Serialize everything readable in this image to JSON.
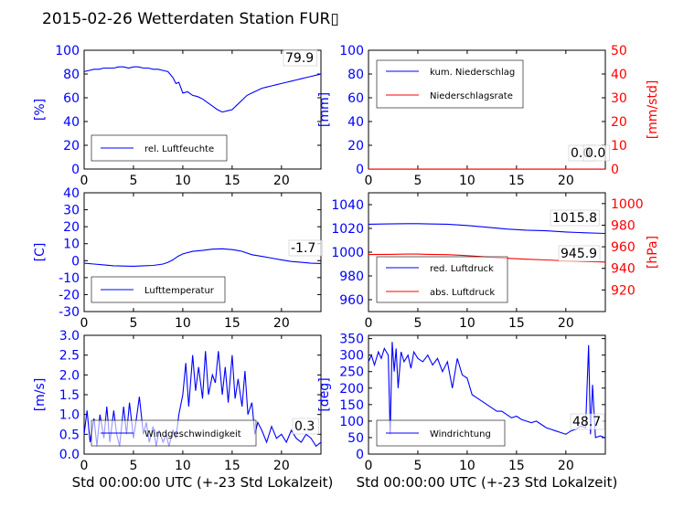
{
  "figure": {
    "title": "2015-02-26 Wetterdaten Station FUR▯",
    "title_color": "#000000"
  },
  "colors": {
    "blue": "#0000ff",
    "red": "#ff0000",
    "dark_red": "#880000",
    "axis": "#000000",
    "background": "#ffffff"
  },
  "chart_data": [
    {
      "type": "line",
      "panel": "top-left",
      "title": "",
      "xlabel": "",
      "ylabel": "[%]",
      "ylabel_color": "#0000ff",
      "xlim": [
        0,
        24
      ],
      "ylim": [
        0,
        100
      ],
      "xticks": [
        0,
        5,
        10,
        15,
        20
      ],
      "yticks": [
        0,
        20,
        40,
        60,
        80,
        100
      ],
      "ytick_color": "#0000ff",
      "grid": false,
      "legend": {
        "position": "lower-left",
        "entries": [
          "rel. Luftfeuchte"
        ]
      },
      "annotation": "79.9",
      "series": [
        {
          "name": "rel. Luftfeuchte",
          "color": "#0000ff",
          "x": [
            0,
            0.5,
            1,
            1.5,
            2,
            2.5,
            3,
            3.5,
            4,
            4.5,
            5,
            5.5,
            6,
            6.5,
            7,
            7.5,
            8,
            8.5,
            9,
            9.3,
            9.6,
            10,
            10.5,
            11,
            11.5,
            12,
            12.5,
            13,
            13.5,
            14,
            14.5,
            15,
            15.5,
            16,
            16.5,
            17,
            17.5,
            18,
            18.5,
            19,
            19.5,
            20,
            20.5,
            21,
            21.5,
            22,
            22.5,
            23,
            23.5,
            24
          ],
          "y": [
            82,
            83,
            84,
            84,
            85,
            85,
            85,
            86,
            86,
            85,
            86,
            86,
            85,
            85,
            84,
            84,
            83,
            82,
            77,
            72,
            73,
            64,
            65,
            62,
            61,
            59,
            56,
            53,
            50,
            48,
            49,
            50,
            54,
            58,
            62,
            64,
            66,
            68,
            69,
            70,
            71,
            72,
            73,
            74,
            75,
            76,
            77,
            78,
            79,
            80
          ]
        }
      ]
    },
    {
      "type": "line",
      "panel": "top-right",
      "title": "",
      "xlabel": "",
      "ylabel": "[mm]",
      "ylabel_color": "#0000ff",
      "ylabel_right": "[mm/std]",
      "ylabel_right_color": "#ff0000",
      "xlim": [
        0,
        24
      ],
      "ylim": [
        0,
        100
      ],
      "ylim_right": [
        0,
        50
      ],
      "xticks": [
        0,
        5,
        10,
        15,
        20
      ],
      "yticks": [
        0,
        20,
        40,
        60,
        80,
        100
      ],
      "yticks_right": [
        0,
        10,
        20,
        30,
        40,
        50
      ],
      "ytick_color": "#0000ff",
      "ytick_right_color": "#ff0000",
      "grid": false,
      "legend": {
        "position": "top-left",
        "entries": [
          "kum. Niederschlag",
          "Niederschlagsrate"
        ]
      },
      "annotations": [
        "0.0",
        "0.0"
      ],
      "series": [
        {
          "name": "kum. Niederschlag",
          "color": "#0000ff",
          "x": [
            0,
            24
          ],
          "y": [
            0,
            0
          ]
        },
        {
          "name": "Niederschlagsrate",
          "color": "#ff0000",
          "x": [
            0,
            24
          ],
          "y": [
            0,
            0
          ],
          "axis": "right"
        }
      ]
    },
    {
      "type": "line",
      "panel": "mid-left",
      "title": "",
      "xlabel": "",
      "ylabel": "[C]",
      "ylabel_color": "#0000ff",
      "xlim": [
        0,
        24
      ],
      "ylim": [
        -30,
        40
      ],
      "xticks": [
        0,
        5,
        10,
        15,
        20
      ],
      "yticks": [
        -30,
        -20,
        -10,
        0,
        10,
        20,
        30,
        40
      ],
      "ytick_color": "#0000ff",
      "grid": false,
      "legend": {
        "position": "lower-left",
        "entries": [
          "Lufttemperatur"
        ]
      },
      "annotation": "-1.7",
      "series": [
        {
          "name": "Lufttemperatur",
          "color": "#0000ff",
          "x": [
            0,
            1,
            2,
            3,
            4,
            5,
            6,
            7,
            8,
            8.5,
            9,
            9.5,
            10,
            11,
            12,
            13,
            14,
            15,
            15.5,
            16,
            17,
            18,
            19,
            20,
            21,
            22,
            23,
            24
          ],
          "y": [
            -1.5,
            -2,
            -2.5,
            -3,
            -3.2,
            -3.3,
            -3,
            -2.8,
            -2,
            -1,
            0.5,
            2.5,
            4,
            5.5,
            6,
            6.8,
            7,
            6.5,
            6,
            5.5,
            3.5,
            2.5,
            1.5,
            0.5,
            -0.5,
            -1,
            -1.5,
            -1.7
          ]
        }
      ]
    },
    {
      "type": "line",
      "panel": "mid-right",
      "title": "",
      "xlabel": "",
      "ylabel": "",
      "ylabel_right": "[hPa]",
      "ylabel_right_color": "#ff0000",
      "xlim": [
        0,
        24
      ],
      "ylim": [
        950,
        1050
      ],
      "ylim_right": [
        900,
        1010
      ],
      "xticks": [
        0,
        5,
        10,
        15,
        20
      ],
      "yticks": [
        960,
        980,
        1000,
        1020,
        1040
      ],
      "yticks_right": [
        920,
        940,
        960,
        980,
        1000
      ],
      "ytick_color": "#0000ff",
      "ytick_right_color": "#ff0000",
      "grid": false,
      "legend": {
        "position": "lower-left",
        "entries": [
          "red. Luftdruck",
          "abs. Luftdruck"
        ]
      },
      "annotations": [
        "1015.8",
        "945.9"
      ],
      "series": [
        {
          "name": "red. Luftdruck",
          "color": "#0000ff",
          "x": [
            0,
            2,
            4,
            5,
            6,
            8,
            10,
            12,
            14,
            16,
            18,
            20,
            22,
            24
          ],
          "y": [
            1023.5,
            1023.8,
            1024,
            1024,
            1023.8,
            1023.5,
            1022.5,
            1021,
            1019.5,
            1018.5,
            1018,
            1017,
            1016.3,
            1015.8
          ]
        },
        {
          "name": "abs. Luftdruck",
          "color": "#ff0000",
          "axis": "right",
          "x": [
            0,
            2,
            4,
            5,
            6,
            8,
            10,
            12,
            14,
            16,
            18,
            20,
            22,
            24
          ],
          "y": [
            952.8,
            953,
            953.2,
            953.2,
            953,
            952.7,
            951.8,
            950.5,
            949.3,
            948.5,
            947.8,
            947,
            946.4,
            945.9
          ]
        }
      ]
    },
    {
      "type": "line",
      "panel": "bottom-left",
      "title": "",
      "xlabel": "Std 00:00:00 UTC (+-23 Std Lokalzeit)",
      "ylabel": "[m/s]",
      "ylabel_color": "#0000ff",
      "xlim": [
        0,
        24
      ],
      "ylim": [
        0,
        3
      ],
      "xticks": [
        0,
        5,
        10,
        15,
        20
      ],
      "yticks": [
        0.0,
        0.5,
        1.0,
        1.5,
        2.0,
        2.5,
        3.0
      ],
      "ytick_color": "#0000ff",
      "grid": false,
      "legend": {
        "position": "lower-center",
        "entries": [
          "Windgeschwindigkeit"
        ]
      },
      "annotation": "0.3",
      "series": [
        {
          "name": "Windgeschwindigkeit",
          "color": "#0000ff",
          "x": [
            0,
            0.3,
            0.6,
            1,
            1.3,
            1.6,
            2,
            2.3,
            2.6,
            3,
            3.3,
            3.6,
            4,
            4.3,
            4.6,
            5,
            5.3,
            5.6,
            6,
            6.3,
            6.6,
            7,
            7.3,
            7.6,
            8,
            8.3,
            8.6,
            9,
            9.3,
            9.6,
            10,
            10.3,
            10.6,
            11,
            11.3,
            11.6,
            12,
            12.3,
            12.6,
            13,
            13.3,
            13.6,
            14,
            14.3,
            14.6,
            15,
            15.3,
            15.6,
            16,
            16.3,
            16.6,
            17,
            17.3,
            17.6,
            18,
            18.5,
            19,
            19.5,
            20,
            20.5,
            21,
            21.5,
            22,
            22.5,
            23,
            23.5,
            24
          ],
          "y": [
            0.5,
            1.1,
            0.3,
            0.9,
            0.2,
            1.0,
            0.4,
            1.2,
            0.3,
            1.1,
            0.5,
            0.2,
            1.2,
            0.5,
            1.3,
            0.4,
            0.9,
            1.45,
            0.5,
            0.8,
            0.3,
            0.7,
            0.2,
            0.6,
            0.3,
            0.5,
            0.2,
            0.6,
            0.4,
            1.0,
            1.5,
            2.3,
            1.2,
            2.5,
            1.6,
            2.2,
            1.4,
            2.6,
            1.5,
            2.0,
            1.8,
            2.6,
            1.5,
            2.2,
            1.3,
            2.5,
            1.4,
            1.9,
            1.2,
            2.1,
            1.0,
            1.3,
            0.5,
            0.8,
            0.6,
            0.3,
            0.7,
            0.4,
            0.5,
            0.3,
            0.6,
            0.4,
            0.3,
            0.5,
            0.4,
            0.2,
            0.3
          ]
        }
      ]
    },
    {
      "type": "line",
      "panel": "bottom-right",
      "title": "",
      "xlabel": "Std 00:00:00 UTC (+-23 Std Lokalzeit)",
      "ylabel": "[deg]",
      "ylabel_color": "#0000ff",
      "xlim": [
        0,
        24
      ],
      "ylim": [
        0,
        360
      ],
      "xticks": [
        0,
        5,
        10,
        15,
        20
      ],
      "yticks": [
        0,
        50,
        100,
        150,
        200,
        250,
        300,
        350
      ],
      "ytick_color": "#0000ff",
      "grid": false,
      "legend": {
        "position": "lower-left",
        "entries": [
          "Windrichtung"
        ]
      },
      "annotation": "48.7",
      "series": [
        {
          "name": "Windrichtung",
          "color": "#0000ff",
          "x": [
            0,
            0.3,
            0.6,
            1,
            1.3,
            1.6,
            2,
            2.2,
            2.4,
            2.6,
            2.8,
            3,
            3.3,
            3.6,
            4,
            4.3,
            4.6,
            5,
            5.5,
            6,
            6.5,
            7,
            7.5,
            8,
            8.5,
            9,
            9.5,
            10,
            10.5,
            11,
            11.5,
            12,
            12.5,
            13,
            13.5,
            14,
            14.5,
            15,
            15.5,
            16,
            16.5,
            17,
            17.5,
            18,
            18.5,
            19,
            19.5,
            20,
            20.5,
            21,
            21.5,
            22,
            22.3,
            22.5,
            22.7,
            23,
            23.5,
            24
          ],
          "y": [
            280,
            300,
            270,
            310,
            290,
            320,
            300,
            60,
            340,
            250,
            320,
            200,
            310,
            280,
            300,
            260,
            310,
            290,
            280,
            300,
            270,
            290,
            250,
            280,
            200,
            290,
            240,
            230,
            180,
            170,
            160,
            150,
            140,
            130,
            130,
            120,
            110,
            115,
            105,
            100,
            95,
            100,
            90,
            80,
            75,
            70,
            65,
            60,
            70,
            75,
            85,
            80,
            330,
            60,
            210,
            50,
            55,
            48.7
          ]
        }
      ]
    }
  ]
}
